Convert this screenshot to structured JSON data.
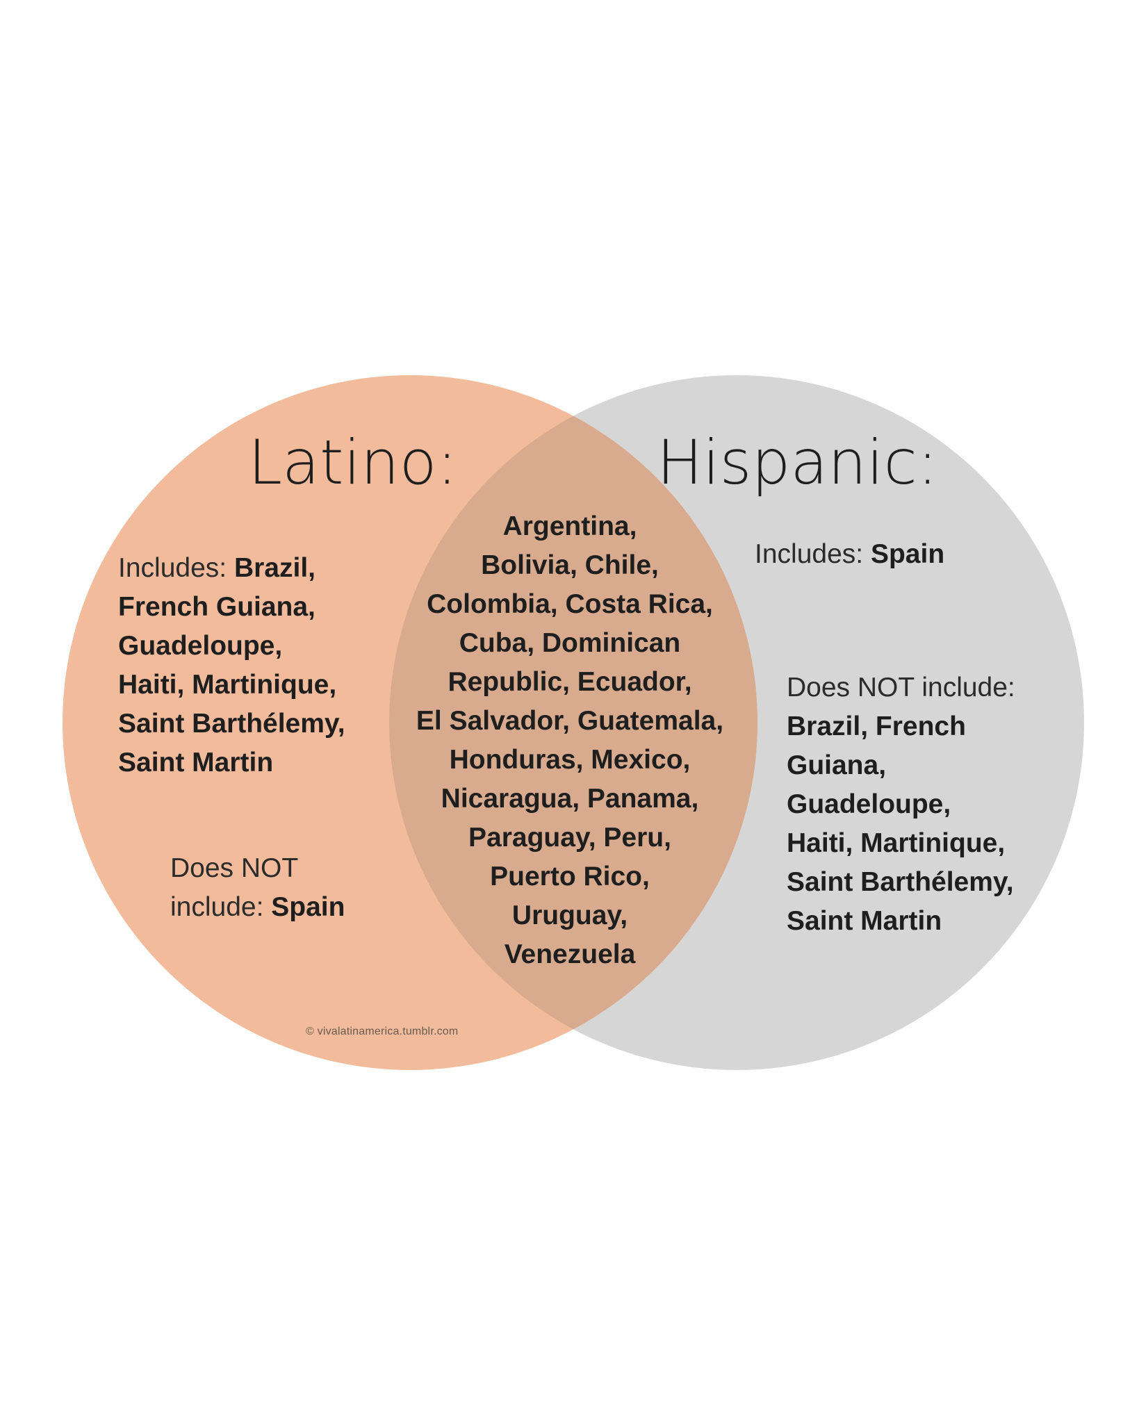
{
  "colors": {
    "background": "#ffffff",
    "latino_circle": "#f2bc9c",
    "hispanic_circle": "#d6d6d6",
    "overlap": "#d9ab8e",
    "text": "#1e1e1e"
  },
  "latino": {
    "title": "Latino:",
    "includes_label": "Includes:",
    "includes_lines": [
      "Brazil,",
      "French Guiana,",
      "Guadeloupe,",
      "Haiti, Martinique,",
      "Saint Barthélemy,",
      "Saint Martin"
    ],
    "excludes_label_line1": "Does NOT",
    "excludes_label_line2": "include:",
    "excludes_value": "Spain"
  },
  "hispanic": {
    "title": "Hispanic:",
    "includes_label": "Includes:",
    "includes_value": "Spain",
    "excludes_label": "Does NOT include:",
    "excludes_lines": [
      "Brazil, French",
      "Guiana,",
      "Guadeloupe,",
      "Haiti, Martinique,",
      "Saint Barthélemy,",
      "Saint Martin"
    ]
  },
  "overlap": {
    "lines": [
      "Argentina,",
      "Bolivia, Chile,",
      "Colombia, Costa Rica,",
      "Cuba, Dominican",
      "Republic, Ecuador,",
      "El Salvador, Guatemala,",
      "Honduras, Mexico,",
      "Nicaragua, Panama,",
      "Paraguay, Peru,",
      "Puerto Rico,",
      "Uruguay,",
      "Venezuela"
    ]
  },
  "watermark": "© vivalatinamerica.tumblr.com"
}
